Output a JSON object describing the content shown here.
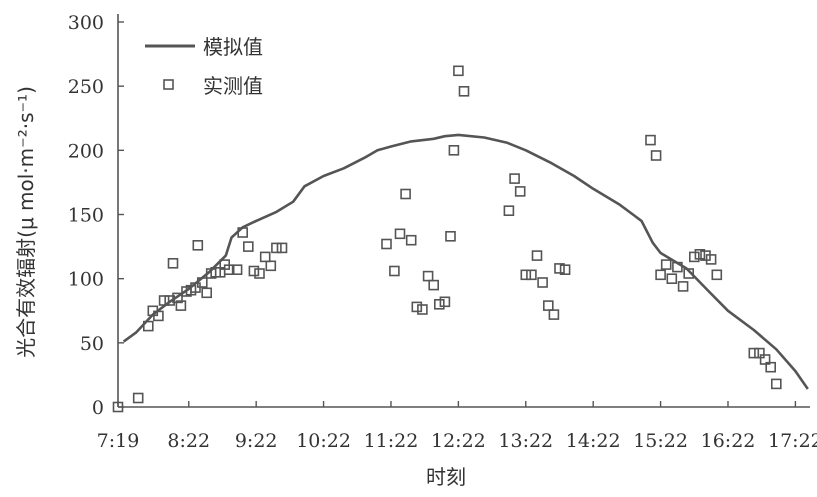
{
  "chart_data": {
    "type": "line+scatter",
    "xlabel": "时刻",
    "ylabel": "光合有效辐射(μ mol·m⁻²·s⁻¹)",
    "x_tick_labels": [
      "7:19",
      "8:22",
      "9:22",
      "10:22",
      "11:22",
      "12:22",
      "13:22",
      "14:22",
      "15:22",
      "16:22",
      "17:22"
    ],
    "x_ticks": [
      "7:19",
      "8:22",
      "9:22",
      "10:22",
      "11:22",
      "12:22",
      "13:22",
      "14:22",
      "15:22",
      "16:22",
      "17:22"
    ],
    "y_ticks": [
      0,
      50,
      100,
      150,
      200,
      250,
      300
    ],
    "ylim": [
      0,
      300
    ],
    "xlim": [
      "7:19",
      "17:35"
    ],
    "grid": false,
    "legend_position": "top-left",
    "colors": {
      "line": "#555555",
      "markers": "#555555",
      "axis": "#555555"
    },
    "series": [
      {
        "name": "模拟值",
        "kind": "line",
        "points": [
          [
            "7:24",
            51
          ],
          [
            "7:35",
            58
          ],
          [
            "7:50",
            72
          ],
          [
            "8:05",
            82
          ],
          [
            "8:22",
            92
          ],
          [
            "8:40",
            105
          ],
          [
            "8:55",
            118
          ],
          [
            "9:00",
            132
          ],
          [
            "9:10",
            140
          ],
          [
            "9:22",
            145
          ],
          [
            "9:40",
            152
          ],
          [
            "9:55",
            160
          ],
          [
            "10:05",
            172
          ],
          [
            "10:22",
            180
          ],
          [
            "10:40",
            186
          ],
          [
            "11:00",
            195
          ],
          [
            "11:10",
            200
          ],
          [
            "11:22",
            203
          ],
          [
            "11:40",
            207
          ],
          [
            "12:00",
            209
          ],
          [
            "12:10",
            211
          ],
          [
            "12:22",
            212
          ],
          [
            "12:45",
            210
          ],
          [
            "13:05",
            206
          ],
          [
            "13:22",
            200
          ],
          [
            "13:45",
            190
          ],
          [
            "14:05",
            180
          ],
          [
            "14:22",
            170
          ],
          [
            "14:45",
            158
          ],
          [
            "15:05",
            145
          ],
          [
            "15:15",
            128
          ],
          [
            "15:22",
            120
          ],
          [
            "15:45",
            108
          ],
          [
            "16:05",
            90
          ],
          [
            "16:22",
            75
          ],
          [
            "16:45",
            60
          ],
          [
            "17:05",
            45
          ],
          [
            "17:22",
            28
          ],
          [
            "17:33",
            14
          ]
        ]
      },
      {
        "name": "实测值",
        "kind": "scatter",
        "points": [
          [
            "7:19",
            0
          ],
          [
            "7:37",
            7
          ],
          [
            "7:46",
            63
          ],
          [
            "7:50",
            75
          ],
          [
            "7:55",
            71
          ],
          [
            "8:00",
            83
          ],
          [
            "8:05",
            83
          ],
          [
            "8:08",
            112
          ],
          [
            "8:12",
            85
          ],
          [
            "8:15",
            79
          ],
          [
            "8:20",
            90
          ],
          [
            "8:24",
            91
          ],
          [
            "8:28",
            93
          ],
          [
            "8:30",
            126
          ],
          [
            "8:34",
            97
          ],
          [
            "8:38",
            89
          ],
          [
            "8:42",
            104
          ],
          [
            "8:46",
            105
          ],
          [
            "8:50",
            105
          ],
          [
            "8:54",
            111
          ],
          [
            "8:58",
            107
          ],
          [
            "9:05",
            107
          ],
          [
            "9:10",
            136
          ],
          [
            "9:15",
            125
          ],
          [
            "9:20",
            106
          ],
          [
            "9:25",
            104
          ],
          [
            "9:30",
            117
          ],
          [
            "9:35",
            110
          ],
          [
            "9:40",
            124
          ],
          [
            "9:45",
            124
          ],
          [
            "11:18",
            127
          ],
          [
            "11:25",
            106
          ],
          [
            "11:30",
            135
          ],
          [
            "11:35",
            166
          ],
          [
            "11:40",
            130
          ],
          [
            "11:45",
            78
          ],
          [
            "11:50",
            76
          ],
          [
            "11:55",
            102
          ],
          [
            "12:00",
            95
          ],
          [
            "12:05",
            80
          ],
          [
            "12:10",
            82
          ],
          [
            "12:15",
            133
          ],
          [
            "12:18",
            200
          ],
          [
            "12:22",
            262
          ],
          [
            "12:27",
            246
          ],
          [
            "13:07",
            153
          ],
          [
            "13:12",
            178
          ],
          [
            "13:17",
            168
          ],
          [
            "13:22",
            103
          ],
          [
            "13:27",
            103
          ],
          [
            "13:32",
            118
          ],
          [
            "13:37",
            97
          ],
          [
            "13:42",
            79
          ],
          [
            "13:47",
            72
          ],
          [
            "13:52",
            108
          ],
          [
            "13:57",
            107
          ],
          [
            "15:13",
            208
          ],
          [
            "15:18",
            196
          ],
          [
            "15:22",
            103
          ],
          [
            "15:27",
            111
          ],
          [
            "15:32",
            100
          ],
          [
            "15:37",
            109
          ],
          [
            "15:42",
            94
          ],
          [
            "15:47",
            104
          ],
          [
            "15:52",
            117
          ],
          [
            "15:57",
            119
          ],
          [
            "16:02",
            118
          ],
          [
            "16:07",
            115
          ],
          [
            "16:12",
            103
          ],
          [
            "16:45",
            42
          ],
          [
            "16:50",
            42
          ],
          [
            "16:55",
            37
          ],
          [
            "17:00",
            31
          ],
          [
            "17:05",
            18
          ]
        ]
      }
    ]
  }
}
